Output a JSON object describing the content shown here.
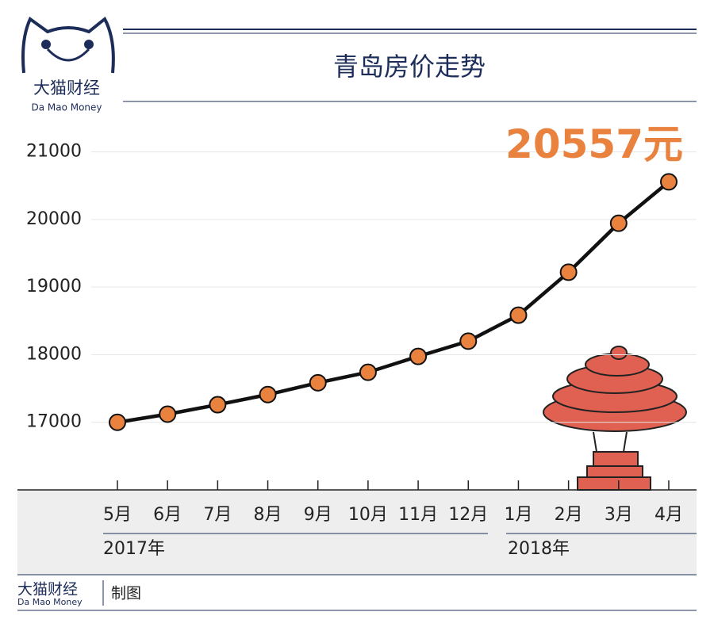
{
  "logo": {
    "name": "大猫财经",
    "subtitle": "Da Mao Money"
  },
  "footer": {
    "name": "大猫财经",
    "subtitle": "Da Mao Money",
    "note": "制图"
  },
  "chart_data": {
    "type": "line",
    "title": "青岛房价走势",
    "categories": [
      "5月",
      "6月",
      "7月",
      "8月",
      "9月",
      "10月",
      "11月",
      "12月",
      "1月",
      "2月",
      "3月",
      "4月"
    ],
    "x_groups": [
      "2017年",
      "2018年"
    ],
    "series": [
      {
        "color": "#e9823f",
        "line_color": "#111111",
        "values": [
          17000,
          17120,
          17260,
          17410,
          17585,
          17740,
          17975,
          18200,
          18585,
          19220,
          19945,
          20557
        ],
        "value_labels": [
          null,
          null,
          null,
          null,
          null,
          null,
          null,
          null,
          null,
          null,
          null,
          "20557元"
        ]
      }
    ],
    "ylim": [
      16000,
      21500
    ],
    "yticks": [
      17000,
      18000,
      19000,
      20000,
      21000
    ],
    "grid": true
  }
}
